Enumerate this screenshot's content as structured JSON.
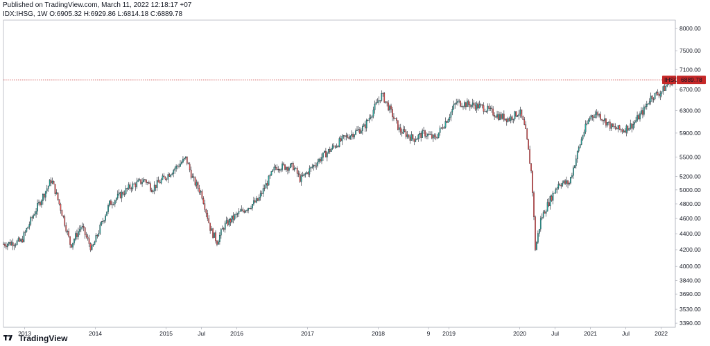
{
  "header": {
    "published": "Published on TradingView.com, March 11, 2022 12:18:17 +07",
    "ohlc": "IDX:IHSG, 1W  O:6905.32  H:6929.86  L:6814.18  C:6889.78"
  },
  "footer": {
    "brand": "TradingView"
  },
  "colors": {
    "up": "#26a69a",
    "down": "#ef5350",
    "wick": "#131722",
    "last_price": "#c62828"
  },
  "chart_data": {
    "type": "candlestick",
    "symbol": "IHSG",
    "last_price_label": "6889.78",
    "last_price": 6889.78,
    "ylim": [
      3350,
      8200
    ],
    "y_ticks": [
      "8000.00",
      "7500.00",
      "7100.00",
      "6700.00",
      "6300.00",
      "5900.00",
      "5500.00",
      "5200.00",
      "5000.00",
      "4800.00",
      "4600.00",
      "4400.00",
      "4200.00",
      "4000.00",
      "3840.00",
      "3690.00",
      "3530.00",
      "3390.00"
    ],
    "x_ticks": [
      "2013",
      "2014",
      "2015",
      "Jul",
      "2016",
      "2017",
      "2018",
      "9",
      "2019",
      "2020",
      "Jul",
      "2021",
      "Jul",
      "2022"
    ],
    "x_tick_dates": [
      2013.0,
      2014.0,
      2015.0,
      2015.5,
      2016.0,
      2017.0,
      2018.0,
      2018.71,
      2019.0,
      2020.0,
      2020.5,
      2021.0,
      2021.5,
      2022.0
    ],
    "x_range": [
      2012.7,
      2022.2
    ],
    "price_path": [
      [
        2012.7,
        4270
      ],
      [
        2012.95,
        4300
      ],
      [
        2013.15,
        4700
      ],
      [
        2013.38,
        5150
      ],
      [
        2013.55,
        4600
      ],
      [
        2013.65,
        4250
      ],
      [
        2013.8,
        4500
      ],
      [
        2013.95,
        4200
      ],
      [
        2014.2,
        4800
      ],
      [
        2014.5,
        5050
      ],
      [
        2014.7,
        5150
      ],
      [
        2014.8,
        5020
      ],
      [
        2015.0,
        5200
      ],
      [
        2015.28,
        5480
      ],
      [
        2015.38,
        5150
      ],
      [
        2015.5,
        4950
      ],
      [
        2015.63,
        4450
      ],
      [
        2015.72,
        4300
      ],
      [
        2015.82,
        4500
      ],
      [
        2016.0,
        4650
      ],
      [
        2016.3,
        4850
      ],
      [
        2016.55,
        5350
      ],
      [
        2016.8,
        5350
      ],
      [
        2016.9,
        5150
      ],
      [
        2017.2,
        5500
      ],
      [
        2017.5,
        5800
      ],
      [
        2017.8,
        6000
      ],
      [
        2018.05,
        6600
      ],
      [
        2018.15,
        6350
      ],
      [
        2018.3,
        5950
      ],
      [
        2018.5,
        5800
      ],
      [
        2018.65,
        5900
      ],
      [
        2018.8,
        5800
      ],
      [
        2019.0,
        6200
      ],
      [
        2019.1,
        6450
      ],
      [
        2019.35,
        6400
      ],
      [
        2019.5,
        6350
      ],
      [
        2019.7,
        6200
      ],
      [
        2019.85,
        6150
      ],
      [
        2020.0,
        6280
      ],
      [
        2020.08,
        5950
      ],
      [
        2020.17,
        5200
      ],
      [
        2020.22,
        4200
      ],
      [
        2020.3,
        4600
      ],
      [
        2020.45,
        4900
      ],
      [
        2020.55,
        5100
      ],
      [
        2020.7,
        5100
      ],
      [
        2020.8,
        5500
      ],
      [
        2020.9,
        5900
      ],
      [
        2021.0,
        6200
      ],
      [
        2021.1,
        6250
      ],
      [
        2021.3,
        6000
      ],
      [
        2021.45,
        5950
      ],
      [
        2021.6,
        6050
      ],
      [
        2021.75,
        6300
      ],
      [
        2021.85,
        6550
      ],
      [
        2022.0,
        6650
      ],
      [
        2022.12,
        6850
      ],
      [
        2022.19,
        6889.78
      ]
    ]
  }
}
